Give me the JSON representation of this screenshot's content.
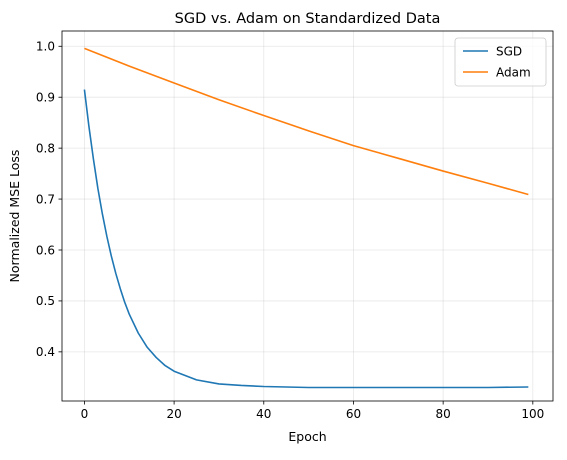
{
  "chart_data": {
    "type": "line",
    "title": "SGD vs. Adam on Standardized Data",
    "xlabel": "Epoch",
    "ylabel": "Normalized MSE Loss",
    "xlim": [
      -5,
      104.5
    ],
    "ylim": [
      0.3035,
      1.03
    ],
    "xticks": [
      0,
      20,
      40,
      60,
      80,
      100
    ],
    "yticks": [
      0.4,
      0.5,
      0.6,
      0.7,
      0.8,
      0.9,
      1.0
    ],
    "xtick_labels": [
      "0",
      "20",
      "40",
      "60",
      "80",
      "100"
    ],
    "ytick_labels": [
      "0.4",
      "0.5",
      "0.6",
      "0.7",
      "0.8",
      "0.9",
      "1.0"
    ],
    "grid": true,
    "legend_position": "top-right",
    "series": [
      {
        "name": "SGD",
        "color": "#1f77b4",
        "x": [
          0,
          1,
          2,
          3,
          4,
          5,
          6,
          7,
          8,
          9,
          10,
          12,
          14,
          16,
          18,
          20,
          25,
          30,
          35,
          40,
          50,
          60,
          70,
          80,
          90,
          99
        ],
        "y": [
          0.915,
          0.843,
          0.779,
          0.721,
          0.671,
          0.627,
          0.588,
          0.554,
          0.524,
          0.497,
          0.474,
          0.437,
          0.409,
          0.389,
          0.373,
          0.362,
          0.345,
          0.337,
          0.334,
          0.332,
          0.33,
          0.33,
          0.33,
          0.33,
          0.33,
          0.331
        ]
      },
      {
        "name": "Adam",
        "color": "#ff7f0e",
        "x": [
          0,
          10,
          20,
          30,
          40,
          50,
          60,
          70,
          80,
          90,
          99
        ],
        "y": [
          0.996,
          0.961,
          0.928,
          0.895,
          0.864,
          0.834,
          0.805,
          0.78,
          0.755,
          0.731,
          0.709
        ]
      }
    ]
  }
}
